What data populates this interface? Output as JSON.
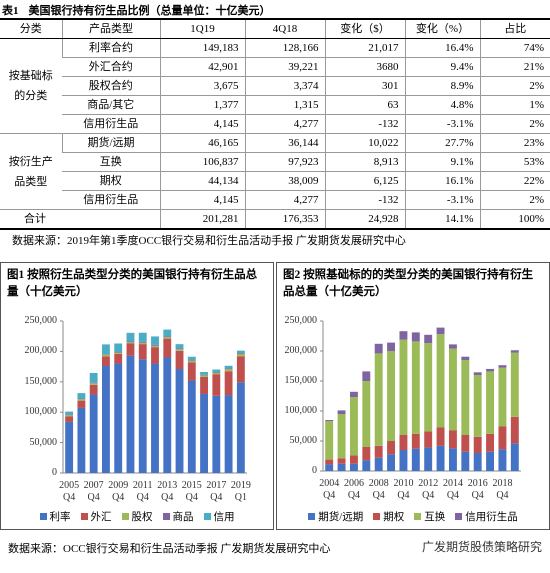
{
  "table": {
    "label": "表1",
    "title": "美国银行持有衍生品比例（总量单位：十亿美元）",
    "header": [
      "分类",
      "产品类型",
      "1Q19",
      "4Q18",
      "变化（$）",
      "变化（%）",
      "占比"
    ],
    "groups": [
      {
        "label": "按基础标的分类",
        "rows": [
          [
            "利率合约",
            "149,183",
            "128,166",
            "21,017",
            "16.4%",
            "74%"
          ],
          [
            "外汇合约",
            "42,901",
            "39,221",
            "3680",
            "9.4%",
            "21%"
          ],
          [
            "股权合约",
            "3,675",
            "3,374",
            "301",
            "8.9%",
            "2%"
          ],
          [
            "商品/其它",
            "1,377",
            "1,315",
            "63",
            "4.8%",
            "1%"
          ],
          [
            "信用衍生品",
            "4,145",
            "4,277",
            "-132",
            "-3.1%",
            "2%"
          ]
        ]
      },
      {
        "label": "按衍生产品类型",
        "rows": [
          [
            "期货/远期",
            "46,165",
            "36,144",
            "10,022",
            "27.7%",
            "23%"
          ],
          [
            "互换",
            "106,837",
            "97,923",
            "8,913",
            "9.1%",
            "53%"
          ],
          [
            "期权",
            "44,134",
            "38,009",
            "6,125",
            "16.1%",
            "22%"
          ],
          [
            "信用衍生品",
            "4,145",
            "4,277",
            "-132",
            "-3.1%",
            "2%"
          ]
        ]
      }
    ],
    "total": [
      "合计",
      "201,281",
      "176,353",
      "24,928",
      "14.1%",
      "100%"
    ]
  },
  "table_source": "数据来源：2019年第1季度OCC银行交易和衍生品活动手报 广发期货发展研究中心",
  "chart_data": [
    {
      "type": "bar",
      "stacked": true,
      "title": "图1 按照衍生品类型分类的美国银行持有衍生品总量（十亿美元）",
      "categories": [
        "2005 Q4",
        null,
        "2007 Q4",
        null,
        "2009 Q4",
        null,
        "2011 Q4",
        null,
        "2013 Q4",
        null,
        "2015 Q4",
        null,
        "2017 Q4",
        null,
        "2019 Q1"
      ],
      "series": [
        {
          "name": "利率",
          "color": "#4472c4",
          "values": [
            84000,
            107000,
            129000,
            176000,
            180000,
            193000,
            187000,
            180000,
            190000,
            171000,
            152000,
            130000,
            127000,
            128166,
            149183
          ]
        },
        {
          "name": "外汇",
          "color": "#c0504d",
          "values": [
            9000,
            12000,
            16000,
            16000,
            16000,
            20000,
            25000,
            27000,
            31000,
            30000,
            30000,
            28000,
            35000,
            39221,
            42901
          ]
        },
        {
          "name": "股权",
          "color": "#9bbb59",
          "values": [
            2000,
            2500,
            2500,
            2500,
            2000,
            2000,
            2200,
            2300,
            2400,
            2500,
            2500,
            2600,
            2900,
            3374,
            3675
          ]
        },
        {
          "name": "商品",
          "color": "#8064a2",
          "values": [
            1000,
            900,
            1000,
            1000,
            1000,
            1500,
            1500,
            1300,
            1500,
            1400,
            1200,
            1000,
            1200,
            1315,
            1377
          ]
        },
        {
          "name": "信用",
          "color": "#4bacc6",
          "values": [
            5000,
            9000,
            16000,
            16000,
            14000,
            14000,
            15000,
            14000,
            11000,
            7000,
            5500,
            4500,
            4100,
            4277,
            4145
          ]
        }
      ],
      "ylim": [
        0,
        250000
      ],
      "yticks": [
        0,
        {
          "value": 50000,
          "label": "50,000"
        },
        {
          "value": 100000,
          "label": "100,000"
        },
        {
          "value": 150000,
          "label": "150,000"
        },
        {
          "value": 200000,
          "label": "200,000"
        },
        {
          "value": 250000,
          "label": "250,000"
        }
      ],
      "grid": false,
      "legend": "bottom"
    },
    {
      "type": "bar",
      "stacked": true,
      "title": "图2 按照基础标的的类型分类的美国银行持有衍生品总量（十亿美元）",
      "categories": [
        "2004 Q4",
        null,
        "2006 Q4",
        null,
        "2008 Q4",
        null,
        "2010 Q4",
        null,
        "2012 Q4",
        null,
        "2014 Q4",
        null,
        "2016 Q4",
        null,
        "2018 Q4",
        null
      ],
      "series": [
        {
          "name": "期货/远期",
          "color": "#4472c4",
          "values": [
            11000,
            12000,
            12000,
            18000,
            22000,
            28000,
            35000,
            37000,
            39000,
            42000,
            38000,
            32000,
            30000,
            32000,
            36144,
            46165
          ]
        },
        {
          "name": "期权",
          "color": "#c0504d",
          "values": [
            8000,
            9000,
            14000,
            22000,
            20000,
            22000,
            25000,
            25000,
            27000,
            31000,
            30000,
            28000,
            27000,
            30000,
            38009,
            44134
          ]
        },
        {
          "name": "互换",
          "color": "#9bbb59",
          "values": [
            64000,
            74000,
            97000,
            110000,
            154000,
            150000,
            159000,
            154000,
            147000,
            155000,
            136000,
            125000,
            103000,
            104000,
            97923,
            106837
          ]
        },
        {
          "name": "信用衍生品",
          "color": "#8064a2",
          "values": [
            2000,
            6000,
            9000,
            16000,
            16000,
            14000,
            14000,
            15000,
            14000,
            11000,
            7000,
            5500,
            4500,
            4100,
            4277,
            4145
          ]
        }
      ],
      "ylim": [
        0,
        250000
      ],
      "yticks": [
        0,
        {
          "value": 50000,
          "label": "50,000"
        },
        {
          "value": 100000,
          "label": "100,000"
        },
        {
          "value": 150000,
          "label": "150,000"
        },
        {
          "value": 200000,
          "label": "200,000"
        },
        {
          "value": 250000,
          "label": "250,000"
        }
      ],
      "grid": false,
      "legend": "bottom"
    }
  ],
  "chart_source": "数据来源：OCC银行交易和衍生品活动季报 广发期货发展研究中心",
  "watermark": "广发期货股债策略研究"
}
